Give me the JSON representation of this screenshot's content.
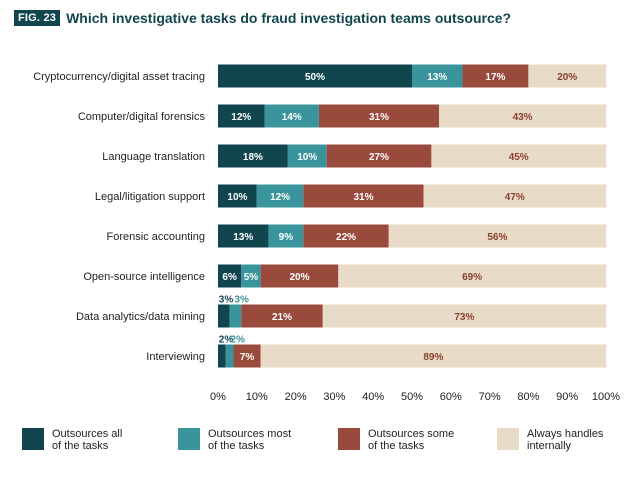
{
  "figure": {
    "badge": "FIG. 23",
    "title": "Which investigative tasks do fraud investigation teams outsource?"
  },
  "colors": {
    "all": "#11464f",
    "most": "#3a949c",
    "some": "#9a4a3c",
    "internal": "#e8dbc8",
    "label_light": "#ffffff",
    "label_dark": "#8b3e30",
    "label_small_teal": "#3a949c",
    "axis": "#222222"
  },
  "chart_data": {
    "type": "bar",
    "orientation": "horizontal",
    "stacked": true,
    "categories": [
      "Cryptocurrency/digital asset tracing",
      "Computer/digital forensics",
      "Language translation",
      "Legal/litigation support",
      "Forensic accounting",
      "Open-source intelligence",
      "Data analytics/data mining",
      "Interviewing"
    ],
    "series": [
      {
        "name": "Outsources all of the tasks",
        "values": [
          50,
          12,
          18,
          10,
          13,
          6,
          3,
          2
        ]
      },
      {
        "name": "Outsources most of the tasks",
        "values": [
          13,
          14,
          10,
          12,
          9,
          5,
          3,
          2
        ]
      },
      {
        "name": "Outsources some of the tasks",
        "values": [
          17,
          31,
          27,
          31,
          22,
          20,
          21,
          7
        ]
      },
      {
        "name": "Always handles internally",
        "values": [
          20,
          43,
          45,
          47,
          56,
          69,
          73,
          89
        ]
      }
    ],
    "value_labels": [
      [
        "50%",
        "13%",
        "17%",
        "20%"
      ],
      [
        "12%",
        "14%",
        "31%",
        "43%"
      ],
      [
        "18%",
        "10%",
        "27%",
        "45%"
      ],
      [
        "10%",
        "12%",
        "31%",
        "47%"
      ],
      [
        "13%",
        "9%",
        "22%",
        "56%"
      ],
      [
        "6%",
        "5%",
        "20%",
        "69%"
      ],
      [
        "3%",
        "3%",
        "21%",
        "73%"
      ],
      [
        "2%",
        "2%",
        "7%",
        "89%"
      ]
    ],
    "xlim": [
      0,
      100
    ],
    "xticks": [
      "0%",
      "10%",
      "20%",
      "30%",
      "40%",
      "50%",
      "60%",
      "70%",
      "80%",
      "90%",
      "100%"
    ],
    "grid": false,
    "legend_position": "bottom"
  },
  "legend": [
    {
      "line1": "Outsources all",
      "line2": "of the tasks"
    },
    {
      "line1": "Outsources most",
      "line2": "of the tasks"
    },
    {
      "line1": "Outsources some",
      "line2": "of the tasks"
    },
    {
      "line1": "Always handles",
      "line2": "internally"
    }
  ]
}
